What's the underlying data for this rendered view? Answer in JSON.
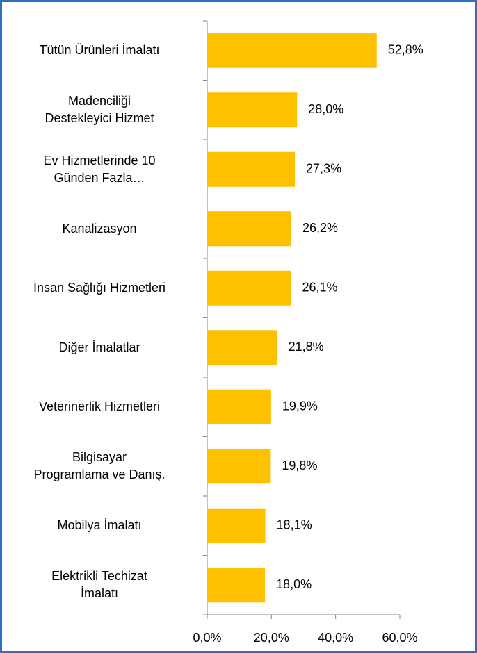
{
  "chart_data": {
    "type": "bar",
    "orientation": "horizontal",
    "categories": [
      "Tütün Ürünleri İmalatı",
      "Madenciliği\nDestekleyici Hizmet",
      "Ev Hizmetlerinde 10\nGünden Fazla…",
      "Kanalizasyon",
      "İnsan Sağlığı Hizmetleri",
      "Diğer İmalatlar",
      "Veterinerlik Hizmetleri",
      "Bilgisayar\nProgramlama ve Danış.",
      "Mobilya İmalatı",
      "Elektrikli Techizat\nİmalatı"
    ],
    "values": [
      52.8,
      28.0,
      27.3,
      26.2,
      26.1,
      21.8,
      19.9,
      19.8,
      18.1,
      18.0
    ],
    "value_labels": [
      "52,8%",
      "28,0%",
      "27,3%",
      "26,2%",
      "26,1%",
      "21,8%",
      "19,9%",
      "19,8%",
      "18,1%",
      "18,0%"
    ],
    "color": "#ffc000",
    "xlim": [
      0,
      60
    ],
    "xticks": [
      {
        "value": 0,
        "label": "0,0%"
      },
      {
        "value": 20,
        "label": "20,0%"
      },
      {
        "value": 40,
        "label": "40,0%"
      },
      {
        "value": 60,
        "label": "60,0%"
      }
    ],
    "grid": false
  }
}
